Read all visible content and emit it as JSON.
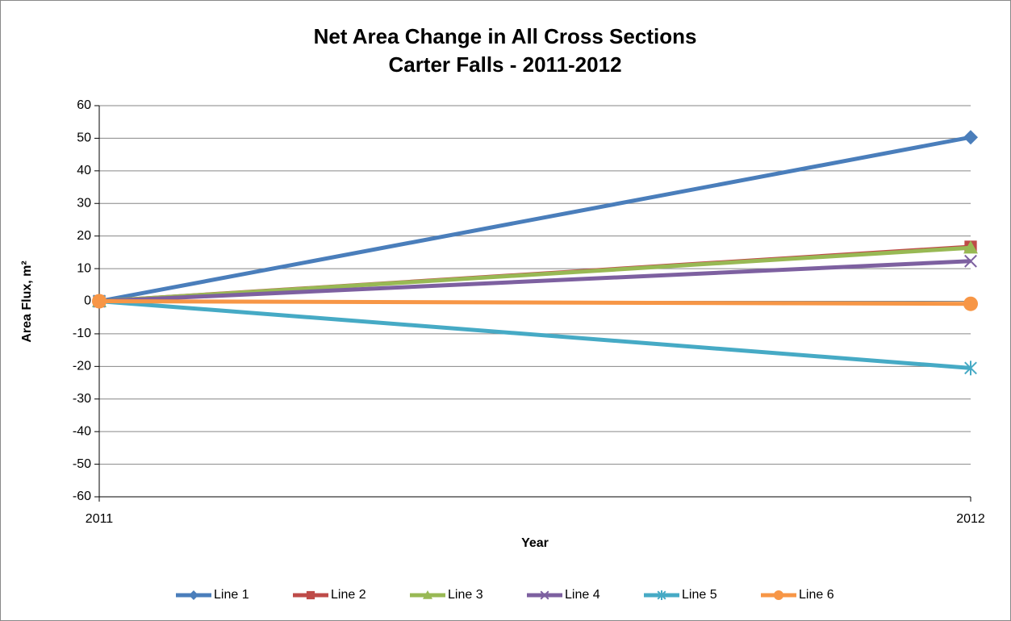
{
  "chart_data": {
    "type": "line",
    "title": "Net Area Change in All Cross Sections",
    "subtitle": "Carter Falls - 2011-2012",
    "x_label": "Year",
    "y_label": "Area Flux, m²",
    "x": [
      2011,
      2012
    ],
    "xlim": [
      2011,
      2012
    ],
    "xticks": [
      2011,
      2012
    ],
    "ylim": [
      -60,
      60
    ],
    "yticks": [
      -60,
      -50,
      -40,
      -30,
      -20,
      -10,
      0,
      10,
      20,
      30,
      40,
      50,
      60
    ],
    "grid": true,
    "legend": "bottom",
    "series": [
      {
        "name": "Line 1",
        "color": "#4a7ebb",
        "marker": "diamond",
        "values": [
          0,
          50.3
        ]
      },
      {
        "name": "Line 2",
        "color": "#be4b48",
        "marker": "square",
        "values": [
          0,
          16.7
        ]
      },
      {
        "name": "Line 3",
        "color": "#98b954",
        "marker": "triangle",
        "values": [
          0,
          16.4
        ]
      },
      {
        "name": "Line 4",
        "color": "#7d60a0",
        "marker": "x",
        "values": [
          0,
          12.3
        ]
      },
      {
        "name": "Line 5",
        "color": "#46aac5",
        "marker": "star",
        "values": [
          0,
          -20.5
        ]
      },
      {
        "name": "Line 6",
        "color": "#f79646",
        "marker": "circle",
        "values": [
          0,
          -0.8
        ]
      }
    ]
  }
}
